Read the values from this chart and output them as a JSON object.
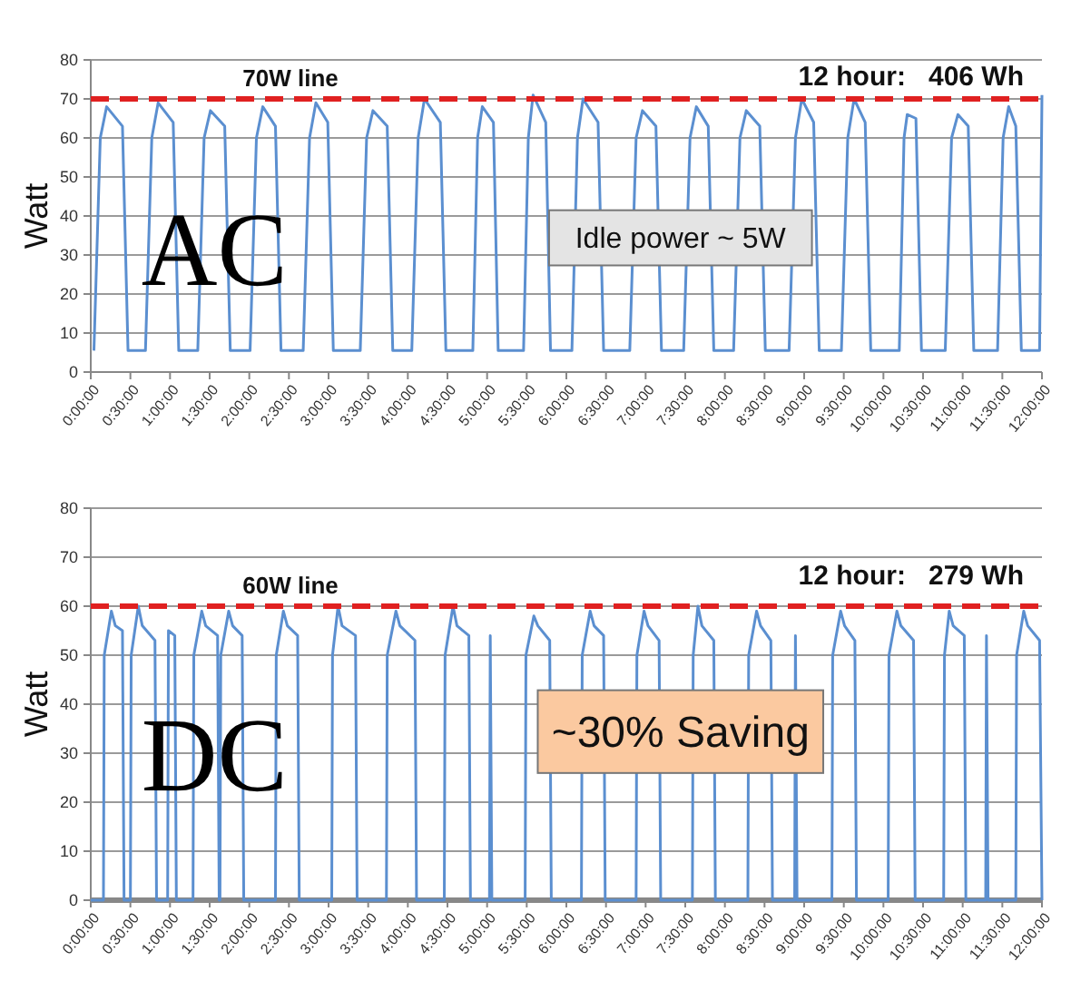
{
  "chart_data": [
    {
      "type": "line",
      "ylabel": "Watt",
      "xlim": [
        0,
        12
      ],
      "ylim": [
        0,
        80
      ],
      "yticks": [
        0,
        10,
        20,
        30,
        40,
        50,
        60,
        70,
        80
      ],
      "grid": "y",
      "xticks": [
        {
          "value": 0,
          "label": "0:00:00"
        },
        {
          "value": 0.5,
          "label": "0:30:00"
        },
        {
          "value": 1,
          "label": "1:00:00"
        },
        {
          "value": 1.5,
          "label": "1:30:00"
        },
        {
          "value": 2,
          "label": "2:00:00"
        },
        {
          "value": 2.5,
          "label": "2:30:00"
        },
        {
          "value": 3,
          "label": "3:00:00"
        },
        {
          "value": 3.5,
          "label": "3:30:00"
        },
        {
          "value": 4,
          "label": "4:00:00"
        },
        {
          "value": 4.5,
          "label": "4:30:00"
        },
        {
          "value": 5,
          "label": "5:00:00"
        },
        {
          "value": 5.5,
          "label": "5:30:00"
        },
        {
          "value": 6,
          "label": "6:00:00"
        },
        {
          "value": 6.5,
          "label": "6:30:00"
        },
        {
          "value": 7,
          "label": "7:00:00"
        },
        {
          "value": 7.5,
          "label": "7:30:00"
        },
        {
          "value": 8,
          "label": "8:00:00"
        },
        {
          "value": 8.5,
          "label": "8:30:00"
        },
        {
          "value": 9,
          "label": "9:00:00"
        },
        {
          "value": 9.5,
          "label": "9:30:00"
        },
        {
          "value": 10,
          "label": "10:00:00"
        },
        {
          "value": 10.5,
          "label": "10:30:00"
        },
        {
          "value": 11,
          "label": "11:00:00"
        },
        {
          "value": 11.5,
          "label": "11:30:00"
        },
        {
          "value": 12,
          "label": "12:00:00"
        }
      ],
      "ref_lines": [
        {
          "axis": "y",
          "value": 70,
          "label": "70W line",
          "color": "#e02020",
          "line_style": "dashed"
        }
      ],
      "annotations": [
        "12 hour:   406 Wh",
        "Idle power ~ 5W",
        "AC"
      ],
      "series": [
        {
          "color": "#5b8fd0",
          "x": [
            0.04,
            0.12,
            0.2,
            0.4,
            0.47,
            0.69,
            0.77,
            0.85,
            1.04,
            1.11,
            1.35,
            1.43,
            1.51,
            1.69,
            1.76,
            2.01,
            2.09,
            2.17,
            2.33,
            2.4,
            2.68,
            2.76,
            2.84,
            2.99,
            3.06,
            3.4,
            3.48,
            3.56,
            3.74,
            3.81,
            4.05,
            4.13,
            4.21,
            4.41,
            4.48,
            4.82,
            4.88,
            4.94,
            5.08,
            5.14,
            5.46,
            5.52,
            5.58,
            5.74,
            5.8,
            6.07,
            6.14,
            6.21,
            6.4,
            6.47,
            6.8,
            6.88,
            6.96,
            7.13,
            7.2,
            7.48,
            7.56,
            7.64,
            7.79,
            7.86,
            8.11,
            8.19,
            8.27,
            8.44,
            8.51,
            8.81,
            8.89,
            8.97,
            9.12,
            9.19,
            9.47,
            9.55,
            9.63,
            9.77,
            9.84,
            10.2,
            10.26,
            10.3,
            10.41,
            10.48,
            10.78,
            10.86,
            10.94,
            11.07,
            11.14,
            11.44,
            11.51,
            11.58,
            11.67,
            11.74,
            11.97,
            12
          ],
          "values": [
            5.5,
            60,
            68,
            63,
            5.5,
            5.5,
            60,
            69,
            64,
            5.5,
            5.5,
            60,
            67,
            63,
            5.5,
            5.5,
            60,
            68,
            63,
            5.5,
            5.5,
            60,
            69,
            64,
            5.5,
            5.5,
            60,
            67,
            63,
            5.5,
            5.5,
            60,
            70,
            64,
            5.5,
            5.5,
            60,
            68,
            64,
            5.5,
            5.5,
            60,
            71,
            64,
            5.5,
            5.5,
            60,
            70,
            64,
            5.5,
            5.5,
            60,
            67,
            63,
            5.5,
            5.5,
            60,
            68,
            63,
            5.5,
            5.5,
            60,
            67,
            63,
            5.5,
            5.5,
            60,
            70,
            64,
            5.5,
            5.5,
            60,
            70,
            64,
            5.5,
            5.5,
            60,
            66,
            65,
            5.5,
            5.5,
            60,
            66,
            63,
            5.5,
            5.5,
            60,
            68,
            63,
            5.5,
            5.5,
            71
          ]
        }
      ]
    },
    {
      "type": "line",
      "ylabel": "Watt",
      "xlim": [
        0,
        12
      ],
      "ylim": [
        0,
        80
      ],
      "yticks": [
        0,
        10,
        20,
        30,
        40,
        50,
        60,
        70,
        80
      ],
      "grid": "y",
      "xticks": [
        {
          "value": 0,
          "label": "0:00:00"
        },
        {
          "value": 0.5,
          "label": "0:30:00"
        },
        {
          "value": 1,
          "label": "1:00:00"
        },
        {
          "value": 1.5,
          "label": "1:30:00"
        },
        {
          "value": 2,
          "label": "2:00:00"
        },
        {
          "value": 2.5,
          "label": "2:30:00"
        },
        {
          "value": 3,
          "label": "3:00:00"
        },
        {
          "value": 3.5,
          "label": "3:30:00"
        },
        {
          "value": 4,
          "label": "4:00:00"
        },
        {
          "value": 4.5,
          "label": "4:30:00"
        },
        {
          "value": 5,
          "label": "5:00:00"
        },
        {
          "value": 5.5,
          "label": "5:30:00"
        },
        {
          "value": 6,
          "label": "6:00:00"
        },
        {
          "value": 6.5,
          "label": "6:30:00"
        },
        {
          "value": 7,
          "label": "7:00:00"
        },
        {
          "value": 7.5,
          "label": "7:30:00"
        },
        {
          "value": 8,
          "label": "8:00:00"
        },
        {
          "value": 8.5,
          "label": "8:30:00"
        },
        {
          "value": 9,
          "label": "9:00:00"
        },
        {
          "value": 9.5,
          "label": "9:30:00"
        },
        {
          "value": 10,
          "label": "10:00:00"
        },
        {
          "value": 10.5,
          "label": "10:30:00"
        },
        {
          "value": 11,
          "label": "11:00:00"
        },
        {
          "value": 11.5,
          "label": "11:30:00"
        },
        {
          "value": 12,
          "label": "12:00:00"
        }
      ],
      "ref_lines": [
        {
          "axis": "y",
          "value": 60,
          "label": "60W line",
          "color": "#e02020",
          "line_style": "dashed"
        }
      ],
      "annotations": [
        "12 hour:   279 Wh",
        "~30% Saving",
        "DC"
      ],
      "series": [
        {
          "color": "#5b8fd0",
          "x": [
            0,
            0.16,
            0.17,
            0.26,
            0.31,
            0.4,
            0.42,
            0.5,
            0.51,
            0.6,
            0.65,
            0.81,
            0.83,
            0.97,
            0.98,
            1.06,
            1.08,
            1.29,
            1.3,
            1.4,
            1.45,
            1.6,
            1.62,
            1.63,
            1.64,
            1.74,
            1.79,
            1.91,
            1.93,
            2.33,
            2.34,
            2.43,
            2.48,
            2.61,
            2.63,
            3.04,
            3.05,
            3.12,
            3.17,
            3.34,
            3.36,
            3.73,
            3.74,
            3.85,
            3.9,
            4.09,
            4.11,
            4.46,
            4.47,
            4.57,
            4.62,
            4.77,
            4.79,
            5.03,
            5.04,
            5.06,
            5.48,
            5.49,
            5.59,
            5.64,
            5.79,
            5.81,
            6.19,
            6.2,
            6.3,
            6.35,
            6.47,
            6.49,
            6.88,
            6.89,
            6.98,
            7.03,
            7.17,
            7.19,
            7.59,
            7.6,
            7.66,
            7.71,
            7.86,
            7.88,
            8.29,
            8.3,
            8.4,
            8.45,
            8.58,
            8.6,
            8.88,
            8.89,
            8.91,
            9.35,
            9.36,
            9.46,
            9.51,
            9.64,
            9.66,
            10.06,
            10.07,
            10.17,
            10.22,
            10.38,
            10.4,
            10.76,
            10.77,
            10.83,
            10.88,
            11.02,
            11.04,
            11.29,
            11.3,
            11.32,
            11.67,
            11.68,
            11.77,
            11.82,
            11.97,
            12
          ],
          "values": [
            0,
            0,
            50,
            59,
            56,
            55,
            0,
            0,
            50,
            60,
            56,
            53,
            0,
            0,
            55,
            54,
            0,
            0,
            50,
            59,
            56,
            54,
            0,
            0,
            50,
            59,
            56,
            54,
            0,
            0,
            50,
            59,
            56,
            54,
            0,
            0,
            50,
            60,
            56,
            54,
            0,
            0,
            50,
            59,
            56,
            53,
            0,
            0,
            50,
            60,
            56,
            54,
            0,
            0,
            54,
            0,
            0,
            50,
            58,
            56,
            53,
            0,
            0,
            50,
            59,
            56,
            54,
            0,
            0,
            50,
            59,
            56,
            53,
            0,
            0,
            50,
            60,
            56,
            53,
            0,
            0,
            50,
            59,
            56,
            53,
            0,
            0,
            54,
            0,
            0,
            50,
            59,
            56,
            53,
            0,
            0,
            50,
            59,
            56,
            53,
            0,
            0,
            50,
            59,
            56,
            54,
            0,
            0,
            54,
            0,
            0,
            50,
            59,
            56,
            53,
            0
          ]
        }
      ]
    }
  ]
}
